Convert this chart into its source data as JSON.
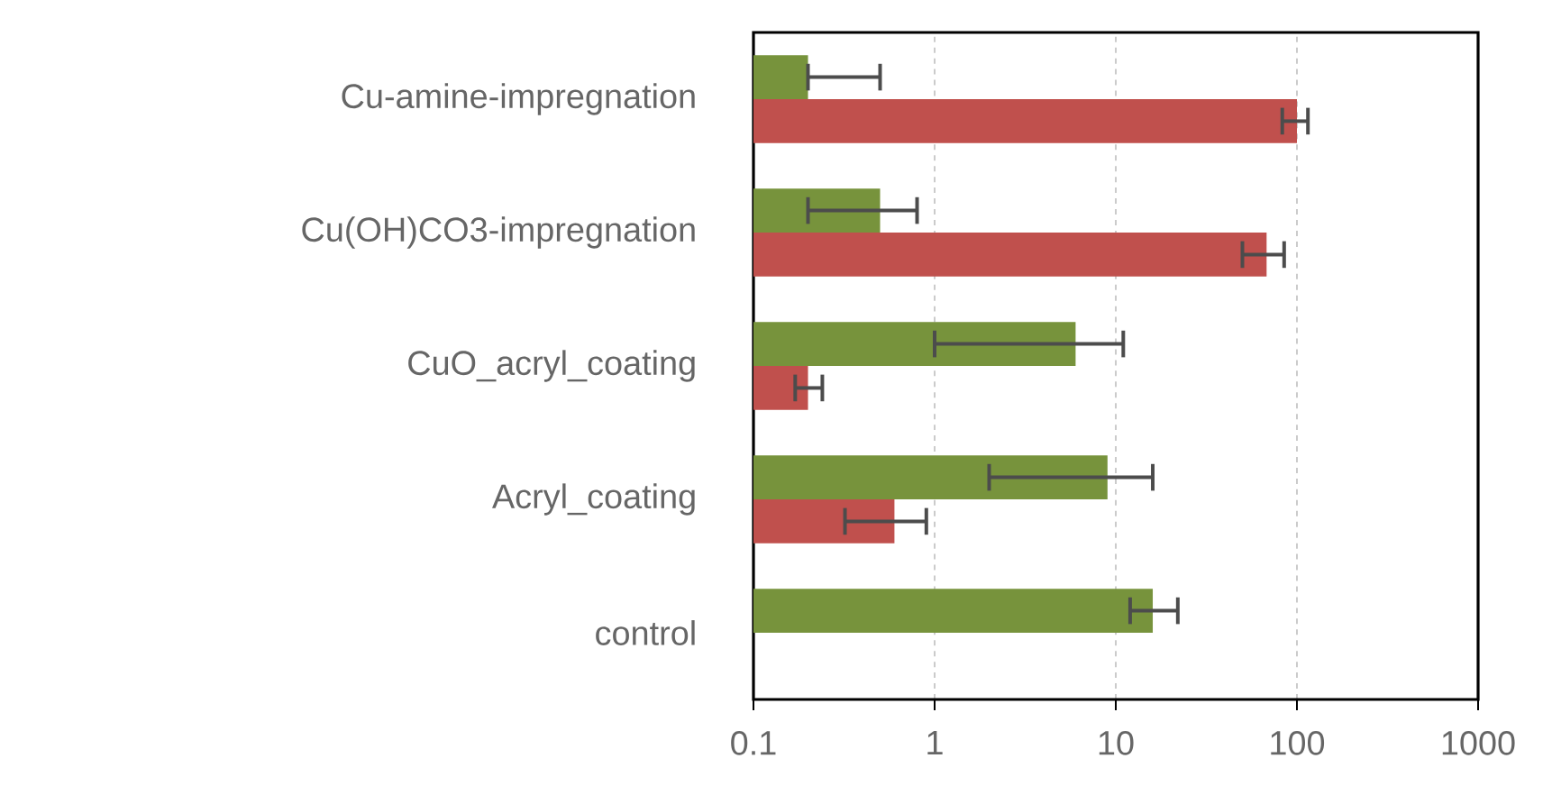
{
  "chart_data": {
    "type": "bar",
    "orientation": "horizontal",
    "log": "x",
    "grid": "x",
    "categories": [
      "Cu-amine-impregnation",
      "Cu(OH)CO3-impregnation",
      "CuO_acryl_coating",
      "Acryl_coating",
      "control"
    ],
    "series": [
      {
        "color": "#77933c",
        "values": [
          0.2,
          0.5,
          6,
          9,
          16
        ],
        "errors": [
          [
            0.2,
            0.5
          ],
          [
            0.2,
            0.8
          ],
          [
            1,
            11
          ],
          [
            2,
            16
          ],
          [
            12,
            22
          ]
        ]
      },
      {
        "color": "#c0504d",
        "values": [
          100,
          68,
          0.2,
          0.6,
          null
        ],
        "errors": [
          [
            83,
            115
          ],
          [
            50,
            85
          ],
          [
            0.17,
            0.24
          ],
          [
            0.32,
            0.9
          ],
          null
        ]
      }
    ],
    "xlim": [
      0.1,
      1000
    ],
    "xticks": [
      0.1,
      1,
      10,
      100,
      1000
    ]
  }
}
